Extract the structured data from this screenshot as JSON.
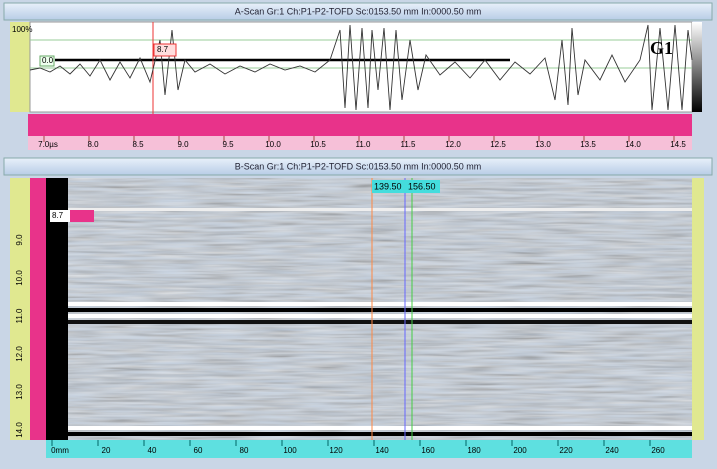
{
  "ascan": {
    "title": "A-Scan Gr:1 Ch:P1-P2-TOFD Sc:0153.50 mm In:0000.50 mm",
    "gate_label": "G1",
    "cursor_value": "8.7",
    "amplitude_labels": [
      "100%",
      "0.0"
    ],
    "time_axis": [
      "7.0µs",
      "8.0",
      "8.5",
      "9.0",
      "9.5",
      "10.0",
      "10.5",
      "11.0",
      "11.5",
      "12.0",
      "12.5",
      "13.0",
      "13.5",
      "14.0",
      "14.5"
    ]
  },
  "bscan": {
    "title": "B-Scan Gr:1 Ch:P1-P2-TOFD Sc:0153.50 mm In:0000.50 mm",
    "cursors": [
      "139.50",
      "156.50"
    ],
    "cursor_value": "8.7",
    "depth_axis": [
      "9.0",
      "10.0",
      "11.0",
      "12.0",
      "13.0",
      "14.0"
    ],
    "scan_axis": [
      "0mm",
      "20",
      "40",
      "60",
      "80",
      "100",
      "120",
      "140",
      "160",
      "180",
      "200",
      "220",
      "240",
      "260"
    ]
  }
}
